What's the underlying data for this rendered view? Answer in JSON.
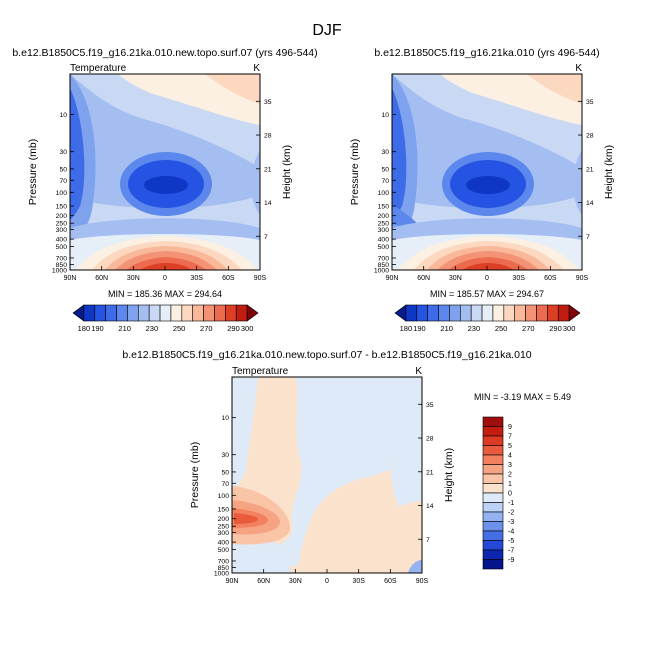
{
  "figure": {
    "title": "DJF"
  },
  "chart_data": [
    {
      "type": "heatmap",
      "title": "b.e12.B1850C5.f19_g16.21ka.010.new.topo.surf.07 (yrs 496-544)",
      "subtitle_left": "Temperature",
      "subtitle_right": "K",
      "ylabel": "Pressure (mb)",
      "ylabel_right": "Height (km)",
      "xticks": [
        "90N",
        "60N",
        "30N",
        "0",
        "30S",
        "60S",
        "90S"
      ],
      "yticks": [
        "10",
        "30",
        "50",
        "70",
        "100",
        "150",
        "200",
        "250",
        "300",
        "400",
        "500",
        "700",
        "850",
        "1000"
      ],
      "yticks_right": [
        "35",
        "28",
        "21",
        "14",
        "7"
      ],
      "stats": "MIN = 185.36   MAX = 294.64",
      "colorbar": {
        "levels": [
          "180",
          "190",
          "200",
          "210",
          "220",
          "230",
          "240",
          "250",
          "260",
          "270",
          "280",
          "290",
          "300"
        ],
        "labels": [
          "180",
          "190",
          "210",
          "230",
          "250",
          "270",
          "290",
          "300"
        ],
        "colors": [
          "#051d8c",
          "#0f37c6",
          "#2553e4",
          "#3e6ce8",
          "#5c87ec",
          "#7fa2ef",
          "#a5bef2",
          "#c9d9f4",
          "#e6eef8",
          "#fcf0e2",
          "#fbd8bf",
          "#f9b899",
          "#f49275",
          "#ec6a4d",
          "#dd3f25",
          "#c01c10",
          "#800008"
        ]
      }
    },
    {
      "type": "heatmap",
      "title": "b.e12.B1850C5.f19_g16.21ka.010 (yrs 496-544)",
      "subtitle_left": "",
      "subtitle_right": "K",
      "ylabel": "Pressure (mb)",
      "ylabel_right": "Height (km)",
      "xticks": [
        "90N",
        "60N",
        "30N",
        "0",
        "30S",
        "60S",
        "90S"
      ],
      "yticks": [
        "10",
        "30",
        "50",
        "70",
        "100",
        "150",
        "200",
        "250",
        "300",
        "400",
        "500",
        "700",
        "850",
        "1000"
      ],
      "yticks_right": [
        "35",
        "28",
        "21",
        "14",
        "7"
      ],
      "stats": "MIN = 185.57   MAX = 294.67",
      "colorbar": {
        "levels": [
          "180",
          "190",
          "200",
          "210",
          "220",
          "230",
          "240",
          "250",
          "260",
          "270",
          "280",
          "290",
          "300"
        ],
        "labels": [
          "180",
          "190",
          "210",
          "230",
          "250",
          "270",
          "290",
          "300"
        ],
        "colors": [
          "#051d8c",
          "#0f37c6",
          "#2553e4",
          "#3e6ce8",
          "#5c87ec",
          "#7fa2ef",
          "#a5bef2",
          "#c9d9f4",
          "#e6eef8",
          "#fcf0e2",
          "#fbd8bf",
          "#f9b899",
          "#f49275",
          "#ec6a4d",
          "#dd3f25",
          "#c01c10",
          "#800008"
        ]
      }
    },
    {
      "type": "heatmap",
      "title": "b.e12.B1850C5.f19_g16.21ka.010.new.topo.surf.07 - b.e12.B1850C5.f19_g16.21ka.010",
      "subtitle_left": "Temperature",
      "subtitle_right": "K",
      "ylabel": "Pressure (mb)",
      "ylabel_right": "Height (km)",
      "xticks": [
        "90N",
        "60N",
        "30N",
        "0",
        "30S",
        "60S",
        "90S"
      ],
      "yticks": [
        "10",
        "30",
        "50",
        "70",
        "100",
        "150",
        "200",
        "250",
        "300",
        "400",
        "500",
        "700",
        "850",
        "1000"
      ],
      "yticks_right": [
        "35",
        "28",
        "21",
        "14",
        "7"
      ],
      "stats": "MIN =  -3.19   MAX =   5.49",
      "colorbar": {
        "labels": [
          "9",
          "7",
          "5",
          "4",
          "3",
          "2",
          "1",
          "0",
          "-1",
          "-2",
          "-3",
          "-4",
          "-5",
          "-7",
          "-9"
        ],
        "colors": [
          "#a00d0d",
          "#c41c10",
          "#dc3a22",
          "#ea5a3c",
          "#f3805f",
          "#f6a383",
          "#f9c5a6",
          "#fbe2cd",
          "#dfeaf9",
          "#bcd2f5",
          "#95b3f0",
          "#6c91ea",
          "#456ee4",
          "#2549d6",
          "#0d26b0",
          "#03148c"
        ]
      }
    }
  ]
}
